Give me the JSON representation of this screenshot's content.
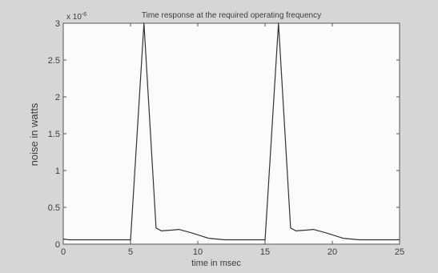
{
  "chart_data": {
    "type": "line",
    "title": "Time response at the required operating frequency",
    "xlabel": "time in msec",
    "ylabel": "noise in watts",
    "y_multiplier_label": "x 10",
    "y_multiplier_exponent": "-6",
    "xlim": [
      0,
      25
    ],
    "ylim": [
      0,
      3
    ],
    "xticks": [
      0,
      5,
      10,
      15,
      20,
      25
    ],
    "yticks": [
      0,
      0.5,
      1,
      1.5,
      2,
      2.5,
      3
    ],
    "xtick_labels": [
      "0",
      "5",
      "10",
      "15",
      "20",
      "25"
    ],
    "ytick_labels": [
      "0",
      "0.5",
      "1",
      "1.5",
      "2",
      "2.5",
      "3"
    ],
    "grid": false,
    "series": [
      {
        "color": "#333333",
        "x": [
          0,
          0.4,
          4.95,
          5.0,
          6.0,
          6.9,
          7.3,
          8.0,
          8.6,
          9.6,
          10.8,
          12.0,
          13.5,
          14.95,
          15.0,
          16.0,
          16.9,
          17.3,
          18.0,
          18.6,
          19.6,
          20.8,
          22.0,
          24.0,
          25.0
        ],
        "y": [
          0.07,
          0.06,
          0.06,
          0.05,
          3.0,
          0.22,
          0.18,
          0.19,
          0.2,
          0.15,
          0.08,
          0.06,
          0.06,
          0.06,
          0.05,
          3.0,
          0.22,
          0.18,
          0.19,
          0.2,
          0.15,
          0.08,
          0.06,
          0.06,
          0.06
        ]
      }
    ]
  }
}
